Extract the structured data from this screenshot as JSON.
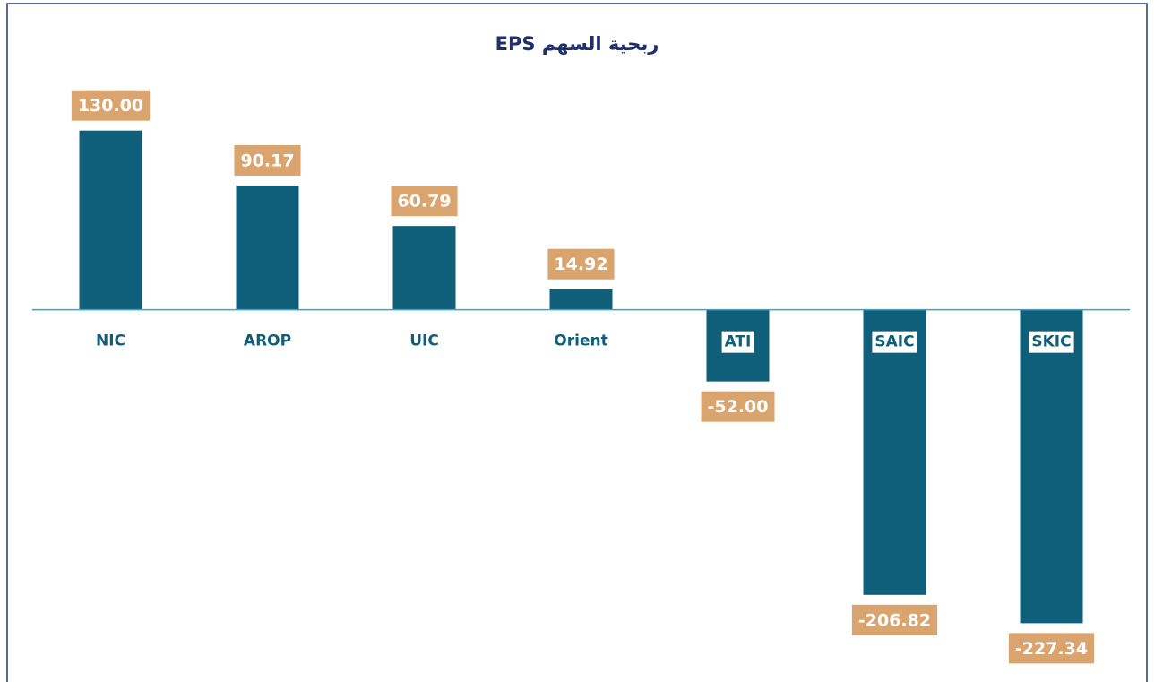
{
  "chart_data": {
    "type": "bar",
    "title": "ربحية السهم   EPS",
    "categories": [
      "NIC",
      "AROP",
      "UIC",
      "Orient",
      "ATI",
      "SAIC",
      "SKIC"
    ],
    "values": [
      130,
      90.17,
      60.79,
      14.92,
      -52,
      -206.82,
      -227.34
    ],
    "value_labels": [
      "130.00",
      "90.17",
      "60.79",
      "14.92",
      "-52.00",
      "-206.82",
      "-227.34"
    ],
    "color": "#0f5e7a",
    "label_color": "#d9a46e",
    "ylim": [
      -270,
      200
    ]
  }
}
